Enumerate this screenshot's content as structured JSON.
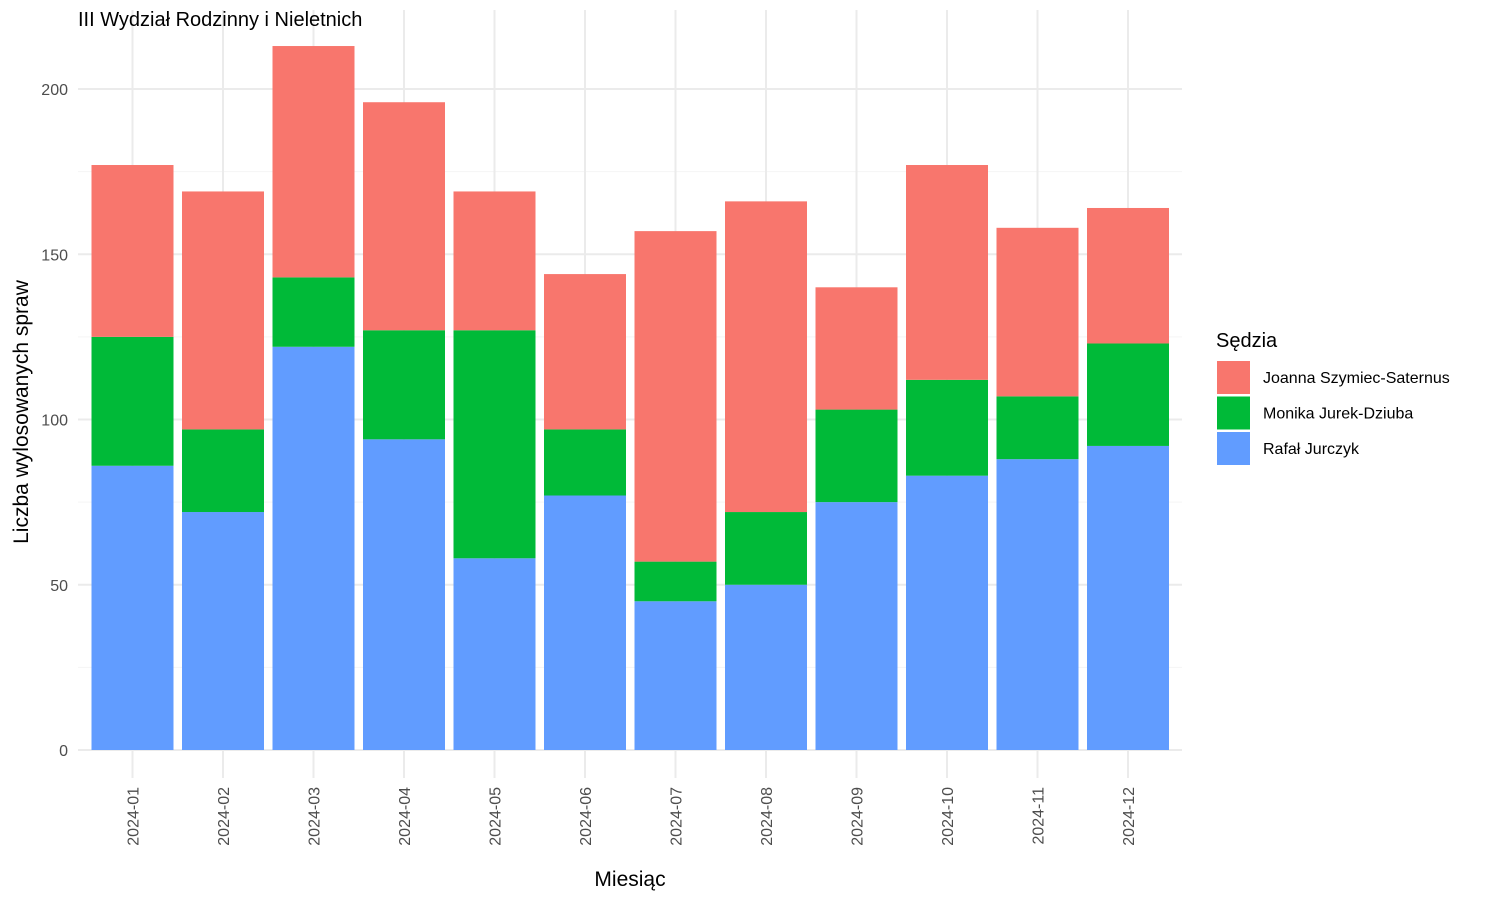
{
  "chart_data": {
    "type": "bar",
    "stacked": true,
    "title": "III Wydział Rodzinny i Nieletnich",
    "xlabel": "Miesiąc",
    "ylabel": "Liczba wylosowanych spraw",
    "categories": [
      "2024-01",
      "2024-02",
      "2024-03",
      "2024-04",
      "2024-05",
      "2024-06",
      "2024-07",
      "2024-08",
      "2024-09",
      "2024-10",
      "2024-11",
      "2024-12"
    ],
    "ylim": [
      0,
      223
    ],
    "yticks": [
      0,
      50,
      100,
      150,
      200
    ],
    "grid": true,
    "legend": {
      "title": "Sędzia",
      "position": "right"
    },
    "series": [
      {
        "name": "Rafał Jurczyk",
        "color": "#619CFF",
        "values": [
          86,
          72,
          122,
          94,
          58,
          77,
          45,
          50,
          75,
          83,
          88,
          92
        ]
      },
      {
        "name": "Monika Jurek-Dziuba",
        "color": "#00BA38",
        "values": [
          39,
          25,
          21,
          33,
          69,
          20,
          12,
          22,
          28,
          29,
          19,
          31
        ]
      },
      {
        "name": "Joanna Szymiec-Saternus",
        "color": "#F8766D",
        "values": [
          52,
          72,
          70,
          69,
          42,
          47,
          100,
          94,
          37,
          65,
          51,
          41
        ]
      }
    ],
    "legend_order": [
      "Joanna Szymiec-Saternus",
      "Monika Jurek-Dziuba",
      "Rafał Jurczyk"
    ]
  }
}
